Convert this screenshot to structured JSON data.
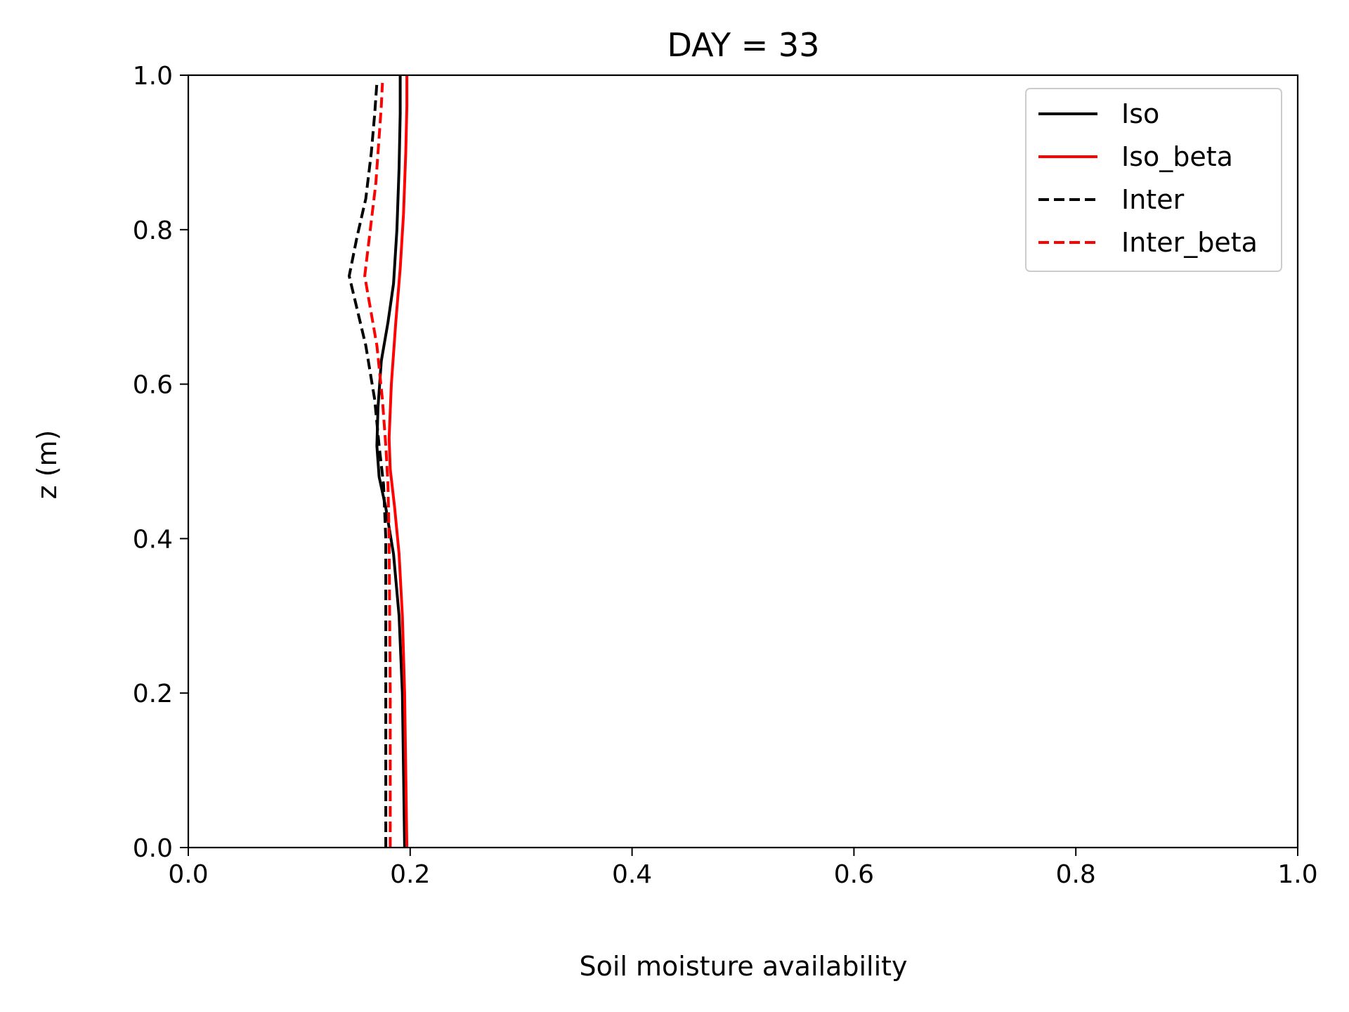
{
  "chart_data": {
    "type": "line",
    "title": "DAY = 33",
    "xlabel": "Soil moisture availability",
    "ylabel": "z (m)",
    "xlim": [
      0.0,
      1.0
    ],
    "ylim": [
      0.0,
      1.0
    ],
    "xticks": [
      "0.0",
      "0.2",
      "0.4",
      "0.6",
      "0.8",
      "1.0"
    ],
    "yticks": [
      "0.0",
      "0.2",
      "0.4",
      "0.6",
      "0.8",
      "1.0"
    ],
    "grid": false,
    "legend_position": "top-right",
    "series": [
      {
        "name": "Iso",
        "color": "#000000",
        "dash": "solid",
        "points": [
          [
            0.195,
            0.0
          ],
          [
            0.194,
            0.1
          ],
          [
            0.193,
            0.2
          ],
          [
            0.19,
            0.3
          ],
          [
            0.185,
            0.38
          ],
          [
            0.178,
            0.44
          ],
          [
            0.172,
            0.48
          ],
          [
            0.17,
            0.52
          ],
          [
            0.171,
            0.57
          ],
          [
            0.174,
            0.63
          ],
          [
            0.18,
            0.68
          ],
          [
            0.185,
            0.73
          ],
          [
            0.188,
            0.8
          ],
          [
            0.19,
            0.88
          ],
          [
            0.191,
            0.95
          ],
          [
            0.191,
            1.0
          ]
        ]
      },
      {
        "name": "Iso_beta",
        "color": "#ff0000",
        "dash": "solid",
        "points": [
          [
            0.197,
            0.0
          ],
          [
            0.196,
            0.1
          ],
          [
            0.195,
            0.2
          ],
          [
            0.193,
            0.3
          ],
          [
            0.19,
            0.38
          ],
          [
            0.186,
            0.44
          ],
          [
            0.182,
            0.49
          ],
          [
            0.181,
            0.53
          ],
          [
            0.183,
            0.6
          ],
          [
            0.187,
            0.68
          ],
          [
            0.191,
            0.75
          ],
          [
            0.194,
            0.82
          ],
          [
            0.196,
            0.9
          ],
          [
            0.197,
            0.96
          ],
          [
            0.197,
            1.0
          ]
        ]
      },
      {
        "name": "Inter",
        "color": "#000000",
        "dash": "dashed",
        "points": [
          [
            0.178,
            0.0
          ],
          [
            0.178,
            0.2
          ],
          [
            0.178,
            0.4
          ],
          [
            0.176,
            0.47
          ],
          [
            0.172,
            0.52
          ],
          [
            0.168,
            0.58
          ],
          [
            0.16,
            0.65
          ],
          [
            0.145,
            0.74
          ],
          [
            0.152,
            0.79
          ],
          [
            0.16,
            0.84
          ],
          [
            0.165,
            0.9
          ],
          [
            0.168,
            0.95
          ],
          [
            0.17,
            0.99
          ]
        ]
      },
      {
        "name": "Inter_beta",
        "color": "#ff0000",
        "dash": "dashed",
        "points": [
          [
            0.182,
            0.0
          ],
          [
            0.182,
            0.2
          ],
          [
            0.181,
            0.4
          ],
          [
            0.18,
            0.47
          ],
          [
            0.178,
            0.52
          ],
          [
            0.175,
            0.58
          ],
          [
            0.17,
            0.65
          ],
          [
            0.159,
            0.74
          ],
          [
            0.164,
            0.8
          ],
          [
            0.169,
            0.86
          ],
          [
            0.172,
            0.92
          ],
          [
            0.174,
            0.96
          ],
          [
            0.175,
            0.99
          ]
        ]
      }
    ]
  }
}
